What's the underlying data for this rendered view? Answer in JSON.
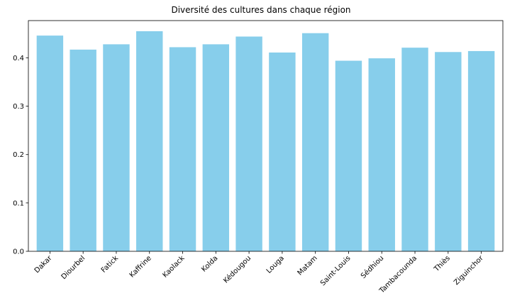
{
  "chart_data": {
    "type": "bar",
    "title": "Diversité des cultures dans chaque région",
    "xlabel": "",
    "ylabel": "",
    "categories": [
      "Dakar",
      "Diourbel",
      "Fatick",
      "Kaffrine",
      "Kaolack",
      "Kolda",
      "Kédougou",
      "Louga",
      "Matam",
      "Saint-Louis",
      "Sédhiou",
      "Tambacounda",
      "Thiès",
      "Ziguinchor"
    ],
    "values": [
      0.446,
      0.417,
      0.428,
      0.455,
      0.422,
      0.428,
      0.444,
      0.411,
      0.451,
      0.394,
      0.399,
      0.421,
      0.412,
      0.414
    ],
    "ylim": [
      0,
      0.477
    ],
    "yticks": [
      0.0,
      0.1,
      0.2,
      0.3,
      0.4
    ],
    "ytick_labels": [
      "0.0",
      "0.1",
      "0.2",
      "0.3",
      "0.4"
    ],
    "bar_color": "#87ceeb",
    "grid": false,
    "legend": "none"
  }
}
